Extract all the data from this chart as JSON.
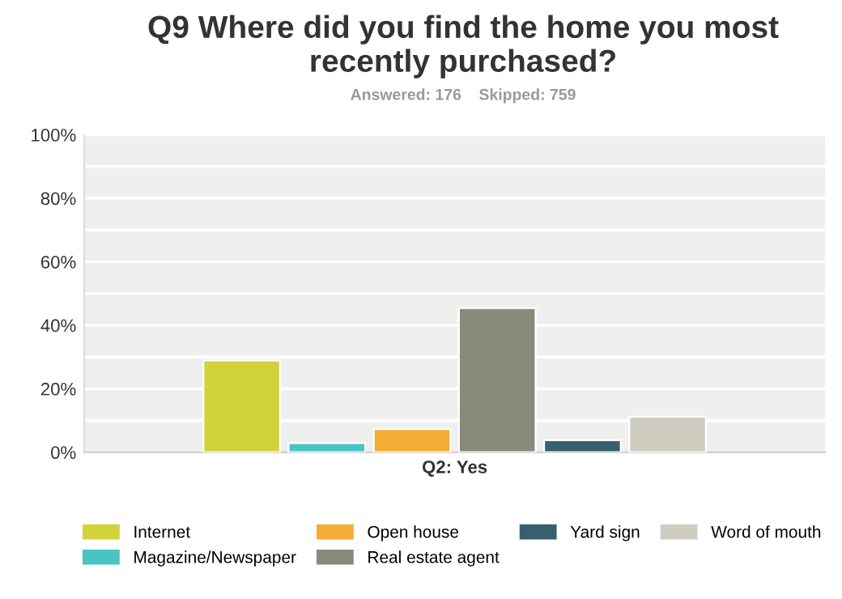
{
  "chart_data": {
    "type": "bar",
    "title": "Q9 Where did you find the home you most recently purchased?",
    "subtitle": "Answered: 176    Skipped: 759",
    "categories": [
      "Q2: Yes"
    ],
    "series": [
      {
        "name": "Internet",
        "color": "#d0d33a",
        "values": [
          28.9
        ]
      },
      {
        "name": "Magazine/Newspaper",
        "color": "#4ac3c3",
        "values": [
          2.9
        ]
      },
      {
        "name": "Open house",
        "color": "#f5ac35",
        "values": [
          7.3
        ]
      },
      {
        "name": "Real estate agent",
        "color": "#8a8a7b",
        "values": [
          45.4
        ]
      },
      {
        "name": "Yard sign",
        "color": "#37606c",
        "values": [
          3.8
        ]
      },
      {
        "name": "Word of mouth",
        "color": "#cfcdc0",
        "values": [
          11.2
        ]
      }
    ],
    "ylim": [
      0,
      100
    ],
    "yticks": [
      {
        "value": 0,
        "label": "0%"
      },
      {
        "value": 10,
        "label": null
      },
      {
        "value": 20,
        "label": "20%"
      },
      {
        "value": 30,
        "label": null
      },
      {
        "value": 40,
        "label": "40%"
      },
      {
        "value": 50,
        "label": null
      },
      {
        "value": 60,
        "label": "60%"
      },
      {
        "value": 70,
        "label": null
      },
      {
        "value": 80,
        "label": "80%"
      },
      {
        "value": 90,
        "label": null
      },
      {
        "value": 100,
        "label": "100%"
      }
    ],
    "grid": "y",
    "legend": "bottom"
  }
}
